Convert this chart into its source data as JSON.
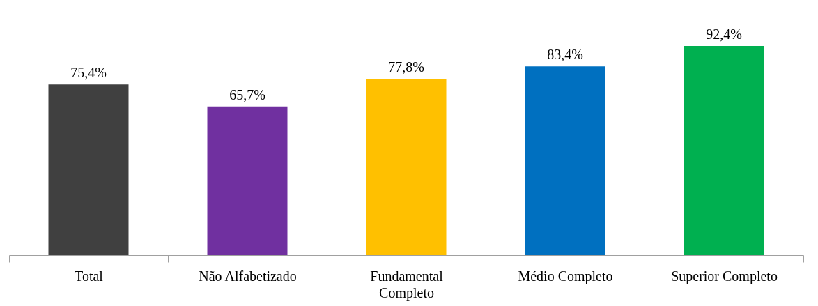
{
  "chart_data": {
    "type": "bar",
    "categories": [
      "Total",
      "Não Alfabetizado",
      "Fundamental Completo",
      "Médio Completo",
      "Superior Completo"
    ],
    "values": [
      75.4,
      65.7,
      77.8,
      83.4,
      92.4
    ],
    "colors": [
      "#404040",
      "#7030a0",
      "#ffc000",
      "#0070c0",
      "#00b050"
    ],
    "value_labels": [
      "75,4%",
      "65,7%",
      "77,8%",
      "83,4%",
      "92,4%"
    ],
    "grid": false,
    "legend": false
  }
}
